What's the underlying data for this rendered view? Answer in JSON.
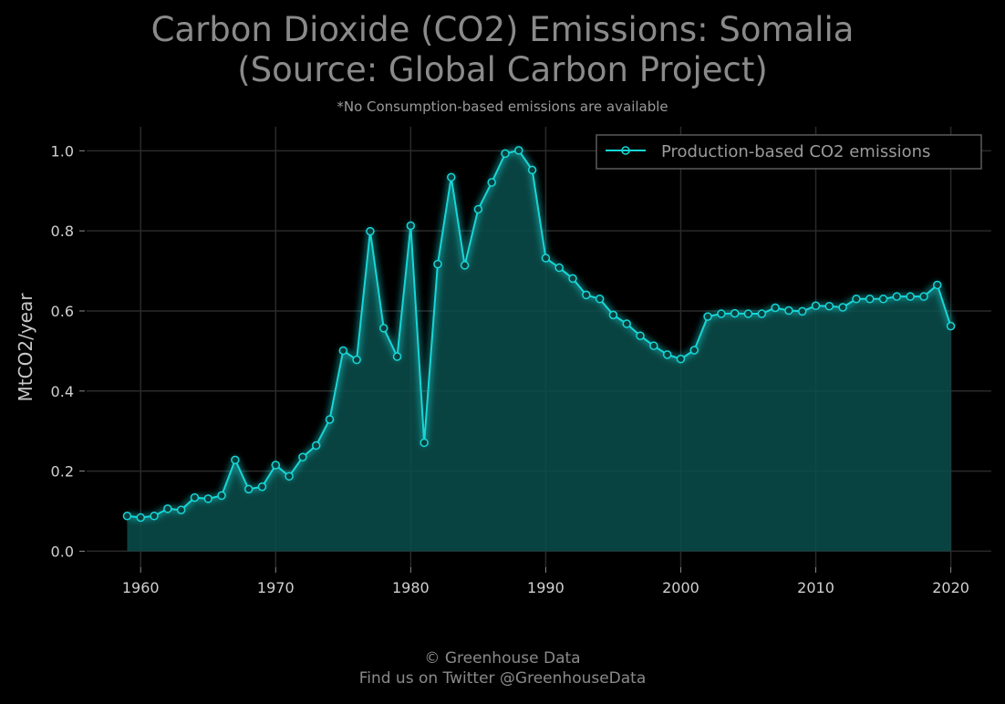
{
  "chart_data": {
    "type": "area",
    "title": "Carbon Dioxide (CO2) Emissions: Somalia",
    "title_line2": "(Source: Global Carbon Project)",
    "subtitle": "*No Consumption-based emissions are available",
    "xlabel": "",
    "ylabel": "MtCO2/year",
    "xlim": [
      1956,
      2023
    ],
    "ylim": [
      -0.04,
      1.06
    ],
    "x_ticks": [
      "1960",
      "1970",
      "1980",
      "1990",
      "2000",
      "2010",
      "2020"
    ],
    "y_ticks": [
      "0.0",
      "0.2",
      "0.4",
      "0.6",
      "0.8",
      "1.0"
    ],
    "grid": true,
    "legend_position": "top-right",
    "series": [
      {
        "name": "Production-based CO2 emissions",
        "color": "#18d6d6",
        "fill_color": "#0a4f4c",
        "x": [
          1959,
          1960,
          1961,
          1962,
          1963,
          1964,
          1965,
          1966,
          1967,
          1968,
          1969,
          1970,
          1971,
          1972,
          1973,
          1974,
          1975,
          1976,
          1977,
          1978,
          1979,
          1980,
          1981,
          1982,
          1983,
          1984,
          1985,
          1986,
          1987,
          1988,
          1989,
          1990,
          1991,
          1992,
          1993,
          1994,
          1995,
          1996,
          1997,
          1998,
          1999,
          2000,
          2001,
          2002,
          2003,
          2004,
          2005,
          2006,
          2007,
          2008,
          2009,
          2010,
          2011,
          2012,
          2013,
          2014,
          2015,
          2016,
          2017,
          2018,
          2019,
          2020
        ],
        "values": [
          0.088,
          0.084,
          0.088,
          0.106,
          0.103,
          0.134,
          0.131,
          0.139,
          0.228,
          0.155,
          0.161,
          0.215,
          0.187,
          0.235,
          0.264,
          0.329,
          0.501,
          0.478,
          0.799,
          0.557,
          0.486,
          0.813,
          0.271,
          0.717,
          0.934,
          0.714,
          0.854,
          0.921,
          0.993,
          1.001,
          0.952,
          0.732,
          0.708,
          0.681,
          0.64,
          0.63,
          0.59,
          0.568,
          0.538,
          0.513,
          0.491,
          0.48,
          0.502,
          0.586,
          0.593,
          0.594,
          0.593,
          0.593,
          0.608,
          0.601,
          0.599,
          0.613,
          0.612,
          0.609,
          0.63,
          0.63,
          0.63,
          0.636,
          0.636,
          0.636,
          0.665,
          0.562
        ]
      }
    ]
  },
  "footer": {
    "line1": "© Greenhouse Data",
    "line2": "Find us on Twitter @GreenhouseData"
  }
}
